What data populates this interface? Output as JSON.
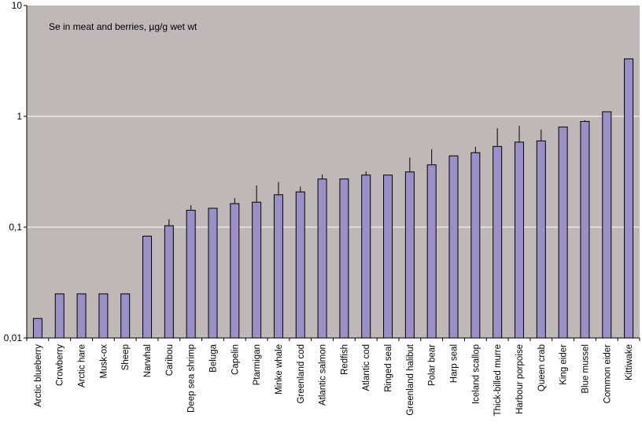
{
  "chart_data": {
    "type": "bar",
    "title": "Se in meat and berries, µg/g wet wt",
    "xlabel": "",
    "ylabel": "",
    "yscale": "log",
    "ylim": [
      0.01,
      10
    ],
    "y_ticks": [
      {
        "value": 0.01,
        "label": "0,01"
      },
      {
        "value": 0.1,
        "label": "0,1"
      },
      {
        "value": 1,
        "label": "1"
      },
      {
        "value": 10,
        "label": "10"
      }
    ],
    "grid": true,
    "legend": "none",
    "colors": {
      "plot_background": "#c0b8b6",
      "bar_fill": "#9b8fc7",
      "bar_stroke": "#000000",
      "gridline": "#ffffff"
    },
    "categories": [
      "Arctic blueberry",
      "Crowberry",
      "Arctic hare",
      "Musk-ox",
      "Sheep",
      "Narwhal",
      "Caribou",
      "Deep sea shrimp",
      "Beluga",
      "Capelin",
      "Ptarmigan",
      "Minke whale",
      "Greenland cod",
      "Atlantic salmon",
      "Redfish",
      "Atlantic cod",
      "Ringed seal",
      "Greenland halibut",
      "Polar bear",
      "Harp seal",
      "Iceland scallop",
      "Thick-billed murre",
      "Harbour porpoise",
      "Queen crab",
      "King eider",
      "Blue mussel",
      "Common eider",
      "Kittiwake"
    ],
    "values": [
      0.015,
      0.025,
      0.025,
      0.025,
      0.025,
      0.083,
      0.103,
      0.142,
      0.148,
      0.163,
      0.168,
      0.196,
      0.208,
      0.272,
      0.272,
      0.295,
      0.295,
      0.315,
      0.365,
      0.44,
      0.47,
      0.535,
      0.585,
      0.6,
      0.8,
      0.9,
      1.1,
      3.3
    ],
    "error_upper": [
      null,
      null,
      null,
      null,
      null,
      null,
      0.118,
      0.158,
      null,
      0.183,
      0.238,
      0.255,
      0.232,
      0.298,
      null,
      0.318,
      null,
      0.425,
      0.505,
      null,
      0.53,
      0.78,
      0.82,
      0.76,
      null,
      0.92,
      null,
      null
    ]
  }
}
